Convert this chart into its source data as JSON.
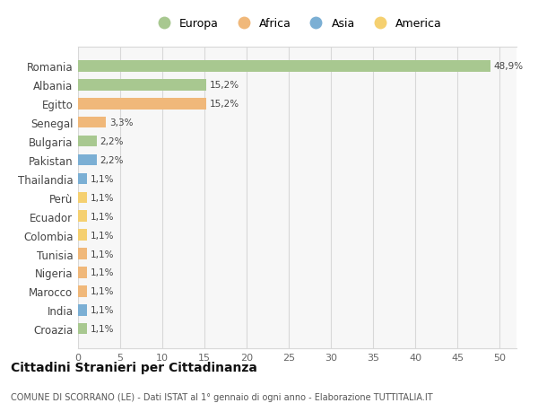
{
  "countries": [
    "Romania",
    "Albania",
    "Egitto",
    "Senegal",
    "Bulgaria",
    "Pakistan",
    "Thailandia",
    "Perù",
    "Ecuador",
    "Colombia",
    "Tunisia",
    "Nigeria",
    "Marocco",
    "India",
    "Croazia"
  ],
  "values": [
    48.9,
    15.2,
    15.2,
    3.3,
    2.2,
    2.2,
    1.1,
    1.1,
    1.1,
    1.1,
    1.1,
    1.1,
    1.1,
    1.1,
    1.1
  ],
  "labels": [
    "48,9%",
    "15,2%",
    "15,2%",
    "3,3%",
    "2,2%",
    "2,2%",
    "1,1%",
    "1,1%",
    "1,1%",
    "1,1%",
    "1,1%",
    "1,1%",
    "1,1%",
    "1,1%",
    "1,1%"
  ],
  "continent": [
    "Europa",
    "Europa",
    "Africa",
    "Africa",
    "Europa",
    "Asia",
    "Asia",
    "America",
    "America",
    "America",
    "Africa",
    "Africa",
    "Africa",
    "Asia",
    "Europa"
  ],
  "colors": {
    "Europa": "#a8c890",
    "Africa": "#f0b87a",
    "Asia": "#7bafd4",
    "America": "#f5d070"
  },
  "legend_order": [
    "Europa",
    "Africa",
    "Asia",
    "America"
  ],
  "title": "Cittadini Stranieri per Cittadinanza",
  "subtitle": "COMUNE DI SCORRANO (LE) - Dati ISTAT al 1° gennaio di ogni anno - Elaborazione TUTTITALIA.IT",
  "xlim": [
    0,
    52
  ],
  "xticks": [
    0,
    5,
    10,
    15,
    20,
    25,
    30,
    35,
    40,
    45,
    50
  ],
  "plot_bg_color": "#f7f7f7",
  "fig_bg_color": "#ffffff",
  "grid_color": "#d8d8d8",
  "bar_height": 0.6
}
